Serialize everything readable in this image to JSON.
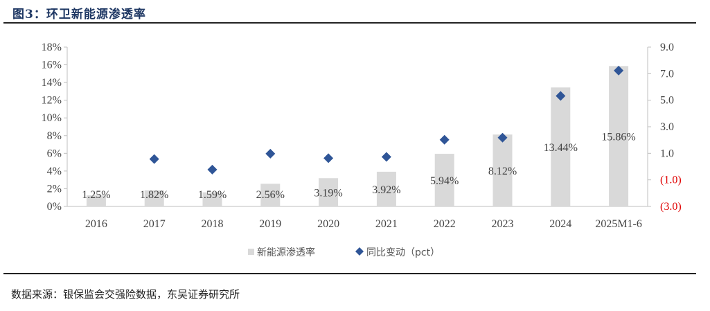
{
  "title": "图3：环卫新能源渗透率",
  "source": "数据来源：银保监会交强险数据，东吴证券研究所",
  "chart_data": {
    "type": "bar",
    "categories": [
      "2016",
      "2017",
      "2018",
      "2019",
      "2020",
      "2021",
      "2022",
      "2023",
      "2024",
      "2025M1-6"
    ],
    "series": [
      {
        "name": "新能源渗透率",
        "type": "bar",
        "axis": "left",
        "color": "#d9d9d9",
        "values": [
          1.25,
          1.82,
          1.59,
          2.56,
          3.19,
          3.92,
          5.94,
          8.12,
          13.44,
          15.86
        ],
        "labels": [
          "1.25%",
          "1.82%",
          "1.59%",
          "2.56%",
          "3.19%",
          "3.92%",
          "5.94%",
          "8.12%",
          "13.44%",
          "15.86%"
        ]
      },
      {
        "name": "同比变动（pct）",
        "type": "scatter",
        "marker": "diamond",
        "axis": "right",
        "color": "#2f5597",
        "values": [
          null,
          0.57,
          -0.23,
          0.97,
          0.63,
          0.73,
          2.02,
          2.18,
          5.32,
          7.23
        ]
      }
    ],
    "y_left": {
      "range": [
        0,
        18
      ],
      "ticks": [
        "0%",
        "2%",
        "4%",
        "6%",
        "8%",
        "10%",
        "12%",
        "14%",
        "16%",
        "18%"
      ]
    },
    "y_right": {
      "range": [
        -3,
        9
      ],
      "ticks": [
        "(3.0)",
        "(1.0)",
        "1.0",
        "3.0",
        "5.0",
        "7.0",
        "9.0"
      ],
      "negative_color": "#e00000"
    },
    "legend_position": "bottom",
    "grid": false
  }
}
